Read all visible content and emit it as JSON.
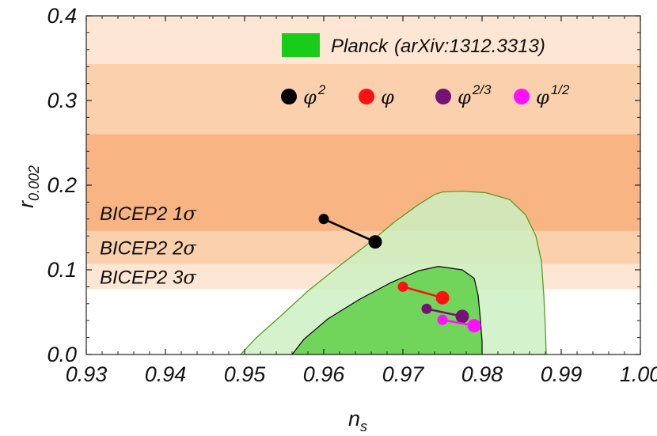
{
  "chart_data": {
    "type": "scatter",
    "xlabel": {
      "main": "n",
      "sub": "s"
    },
    "ylabel": {
      "main": "r",
      "sub": "0.002"
    },
    "xlim": [
      0.93,
      1.0
    ],
    "ylim": [
      0.0,
      0.4
    ],
    "xticks": [
      "0.93",
      "0.94",
      "0.95",
      "0.96",
      "0.97",
      "0.98",
      "0.99",
      "1.00"
    ],
    "yticks": [
      "0.0",
      "0.1",
      "0.2",
      "0.3",
      "0.4"
    ],
    "bands": [
      {
        "name": "BICEP2 3σ",
        "ymin": 0.077,
        "ymax": 0.4,
        "color": "#fde6d3",
        "label": "BICEP2 3σ"
      },
      {
        "name": "BICEP2 2σ",
        "ymin": 0.107,
        "ymax": 0.343,
        "color": "#fbd0ad",
        "label": "BICEP2 2σ"
      },
      {
        "name": "BICEP2 1σ",
        "ymin": 0.146,
        "ymax": 0.26,
        "color": "#f9b483",
        "label": "BICEP2 1σ"
      }
    ],
    "contours": [
      {
        "name": "Planck 2σ",
        "fill": "#cbf0c2",
        "fill_opacity": 0.82,
        "stroke": "#5e9a20",
        "points": [
          [
            0.9495,
            0.0
          ],
          [
            0.9515,
            0.02
          ],
          [
            0.9545,
            0.045
          ],
          [
            0.958,
            0.075
          ],
          [
            0.962,
            0.105
          ],
          [
            0.9655,
            0.13
          ],
          [
            0.969,
            0.157
          ],
          [
            0.9718,
            0.176
          ],
          [
            0.974,
            0.189
          ],
          [
            0.975,
            0.192
          ],
          [
            0.9775,
            0.193
          ],
          [
            0.9805,
            0.191
          ],
          [
            0.9835,
            0.183
          ],
          [
            0.9855,
            0.165
          ],
          [
            0.9868,
            0.14
          ],
          [
            0.9875,
            0.11
          ],
          [
            0.9878,
            0.07
          ],
          [
            0.988,
            0.03
          ],
          [
            0.9881,
            0.0
          ]
        ]
      },
      {
        "name": "Planck 1σ",
        "fill": "#5fcf48",
        "fill_opacity": 0.85,
        "stroke": "#111111",
        "points": [
          [
            0.956,
            0.0
          ],
          [
            0.9575,
            0.018
          ],
          [
            0.9605,
            0.042
          ],
          [
            0.9645,
            0.065
          ],
          [
            0.9685,
            0.085
          ],
          [
            0.972,
            0.099
          ],
          [
            0.9745,
            0.104
          ],
          [
            0.9775,
            0.1
          ],
          [
            0.979,
            0.09
          ],
          [
            0.9795,
            0.07
          ],
          [
            0.9798,
            0.04
          ],
          [
            0.98,
            0.015
          ],
          [
            0.98,
            0.0
          ]
        ]
      }
    ],
    "series": [
      {
        "name": "φ^2",
        "color": "#000000",
        "points": [
          [
            0.96,
            0.16
          ],
          [
            0.9665,
            0.133
          ]
        ]
      },
      {
        "name": "φ",
        "color": "#ff1111",
        "points": [
          [
            0.97,
            0.08
          ],
          [
            0.975,
            0.067
          ]
        ]
      },
      {
        "name": "φ^2/3",
        "color": "#751375",
        "points": [
          [
            0.973,
            0.054
          ],
          [
            0.9775,
            0.045
          ]
        ]
      },
      {
        "name": "φ^1/2",
        "color": "#ff11ff",
        "points": [
          [
            0.975,
            0.041
          ],
          [
            0.979,
            0.034
          ]
        ]
      }
    ],
    "legend": {
      "planck_label": "Planck",
      "planck_ref": "(arXiv:1312.3313)",
      "planck_color": "#19cc19",
      "series_labels": [
        {
          "base": "φ",
          "sup": "2"
        },
        {
          "base": "φ",
          "sup": ""
        },
        {
          "base": "φ",
          "sup": "2/3"
        },
        {
          "base": "φ",
          "sup": "1/2"
        }
      ]
    }
  }
}
